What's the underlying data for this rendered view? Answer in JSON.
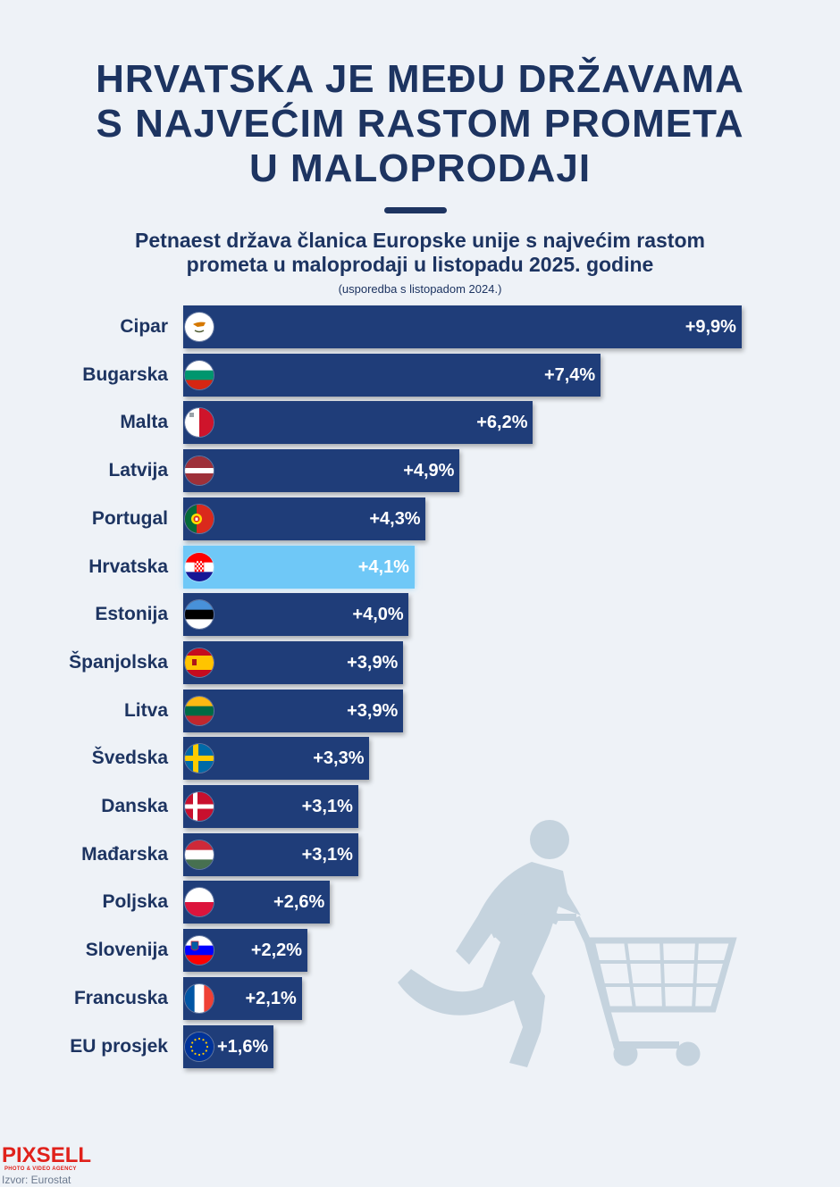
{
  "title_lines": [
    "HRVATSKA JE MEĐU DRŽAVAMA",
    "S NAJVEĆIM RASTOM PROMETA",
    "U MALOPRODAJI"
  ],
  "subtitle_lines": [
    "Petnaest država članica Europske unije s najvećim rastom",
    "prometa u maloprodaji u listopadu 2025. godine"
  ],
  "note": "(usporedba s listopadom 2024.)",
  "logo": "PIXSELL",
  "logo_tagline": "PHOTO & VIDEO AGENCY",
  "source": "Izvor: Eurostat",
  "colors": {
    "title": "#1d3461",
    "bar": "#1f3d79",
    "highlight_bar": "#6fc8f7",
    "background": "#eef2f7",
    "silhouette": "#c5d3de",
    "logo": "#e0211b"
  },
  "chart_data": {
    "type": "bar",
    "orientation": "horizontal",
    "title": "Petnaest država članica Europske unije s najvećim rastom prometa u maloprodaji u listopadu 2025. godine",
    "unit": "%",
    "xlim": [
      0,
      10
    ],
    "categories": [
      "Cipar",
      "Bugarska",
      "Malta",
      "Latvija",
      "Portugal",
      "Hrvatska",
      "Estonija",
      "Španjolska",
      "Litva",
      "Švedska",
      "Danska",
      "Mađarska",
      "Poljska",
      "Slovenija",
      "Francuska",
      "EU prosjek"
    ],
    "values": [
      9.9,
      7.4,
      6.2,
      4.9,
      4.3,
      4.1,
      4.0,
      3.9,
      3.9,
      3.3,
      3.1,
      3.1,
      2.6,
      2.2,
      2.1,
      1.6
    ],
    "value_labels": [
      "+9,9%",
      "+7,4%",
      "+6,2%",
      "+4,9%",
      "+4,3%",
      "+4,1%",
      "+4,0%",
      "+3,9%",
      "+3,9%",
      "+3,3%",
      "+3,1%",
      "+3,1%",
      "+2,6%",
      "+2,2%",
      "+2,1%",
      "+1,6%"
    ],
    "flags": [
      "cyprus-flag-icon",
      "bulgaria-flag-icon",
      "malta-flag-icon",
      "latvia-flag-icon",
      "portugal-flag-icon",
      "croatia-flag-icon",
      "estonia-flag-icon",
      "spain-flag-icon",
      "lithuania-flag-icon",
      "sweden-flag-icon",
      "denmark-flag-icon",
      "hungary-flag-icon",
      "poland-flag-icon",
      "slovenia-flag-icon",
      "france-flag-icon",
      "eu-flag-icon"
    ],
    "highlight": "Hrvatska"
  }
}
